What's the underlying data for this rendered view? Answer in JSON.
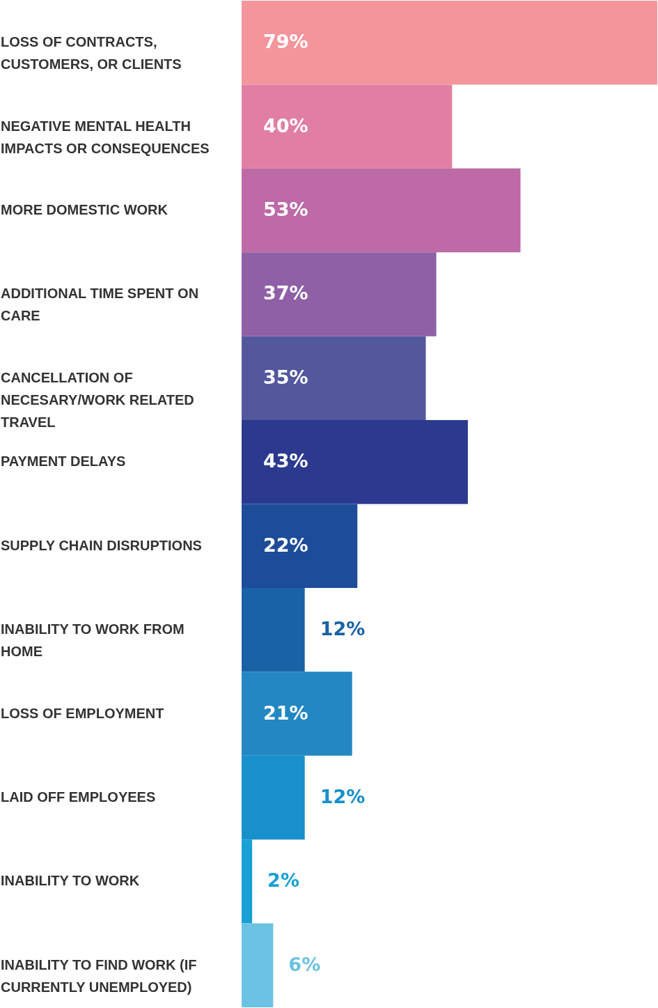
{
  "chart_data": {
    "type": "bar",
    "orientation": "horizontal",
    "categories": [
      "LOSS OF CONTRACTS, CUSTOMERS, OR CLIENTS",
      "NEGATIVE MENTAL HEALTH IMPACTS OR CONSEQUENCES",
      "MORE DOMESTIC WORK",
      "ADDITIONAL TIME SPENT ON CARE",
      "CANCELLATION OF NECESARY/WORK RELATED TRAVEL",
      "PAYMENT DELAYS",
      "SUPPLY CHAIN DISRUPTIONS",
      "INABILITY TO WORK FROM HOME",
      "LOSS OF EMPLOYMENT",
      "LAID OFF EMPLOYEES",
      "INABILITY TO WORK",
      "INABILITY TO FIND WORK (IF CURRENTLY UNEMPLOYED)"
    ],
    "values": [
      79,
      40,
      53,
      37,
      35,
      43,
      22,
      12,
      21,
      12,
      2,
      6
    ],
    "value_labels": [
      "79%",
      "40%",
      "53%",
      "37%",
      "35%",
      "43%",
      "22%",
      "12%",
      "21%",
      "12%",
      "2%",
      "6%"
    ],
    "colors": [
      "#f4959c",
      "#e17fa3",
      "#bd6aa7",
      "#8f60a6",
      "#53579c",
      "#2b3a8f",
      "#1d4c99",
      "#1a62a6",
      "#2287c2",
      "#1890cb",
      "#18a0d7",
      "#6cc2e2"
    ]
  }
}
